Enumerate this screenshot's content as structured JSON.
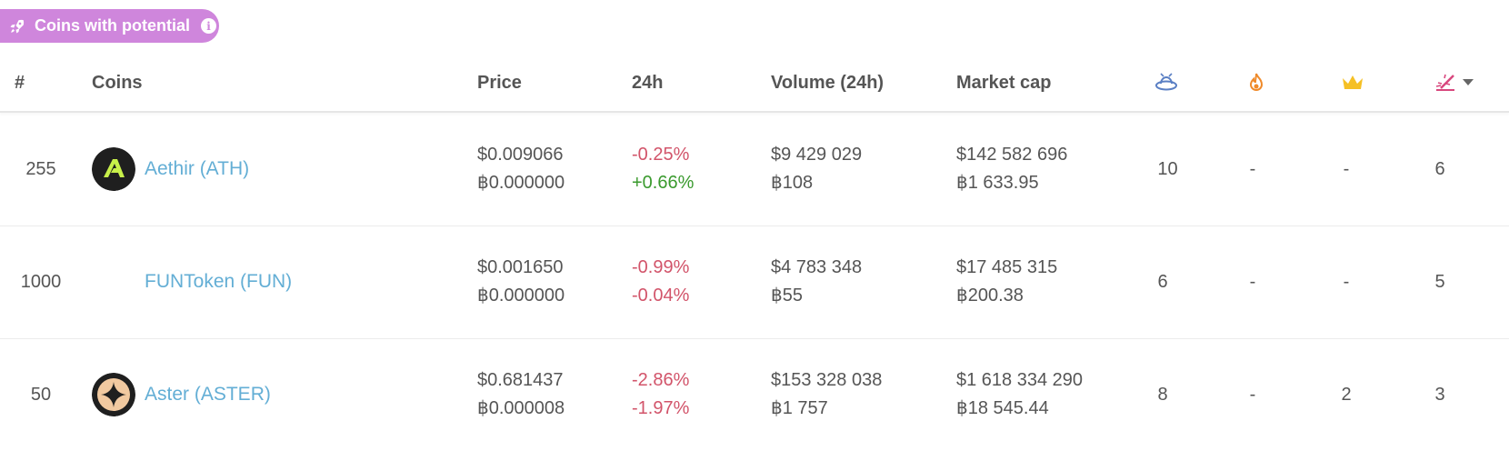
{
  "banner": {
    "label": "Coins with potential",
    "info_icon": "info-icon",
    "rocket_icon": "rocket-icon",
    "color": "#cf86dc"
  },
  "columns": {
    "rank": "#",
    "coins": "Coins",
    "price": "Price",
    "change": "24h",
    "volume": "Volume (24h)",
    "market_cap": "Market cap",
    "col7_icon": "saucer-icon",
    "col8_icon": "fire-icon",
    "col9_icon": "crown-icon",
    "col10_icon": "rocket-launch-icon",
    "sort_icon": "caret-down-icon"
  },
  "rows": [
    {
      "rank": "255",
      "name": "Aethir (ATH)",
      "price_usd": "$0.009066",
      "price_btc": "฿0.000000",
      "change_usd": "-0.25%",
      "change_btc": "+0.66%",
      "volume_usd": "$9 429 029",
      "volume_btc": "฿108",
      "mcap_usd": "$142 582 696",
      "mcap_btc": "฿1 633.95",
      "c7": "10",
      "c8": "-",
      "c9": "-",
      "c10": "6"
    },
    {
      "rank": "1000",
      "name": "FUNToken (FUN)",
      "price_usd": "$0.001650",
      "price_btc": "฿0.000000",
      "change_usd": "-0.99%",
      "change_btc": "-0.04%",
      "volume_usd": "$4 783 348",
      "volume_btc": "฿55",
      "mcap_usd": "$17 485 315",
      "mcap_btc": "฿200.38",
      "c7": "6",
      "c8": "-",
      "c9": "-",
      "c10": "5"
    },
    {
      "rank": "50",
      "name": "Aster (ASTER)",
      "price_usd": "$0.681437",
      "price_btc": "฿0.000008",
      "change_usd": "-2.86%",
      "change_btc": "-1.97%",
      "volume_usd": "$153 328 038",
      "volume_btc": "฿1 757",
      "mcap_usd": "$1 618 334 290",
      "mcap_btc": "฿18 545.44",
      "c7": "8",
      "c8": "-",
      "c9": "2",
      "c10": "3"
    }
  ],
  "colors": {
    "link": "#63aed5",
    "negative": "#d2546a",
    "positive": "#3a9a2e",
    "text": "#555555"
  }
}
